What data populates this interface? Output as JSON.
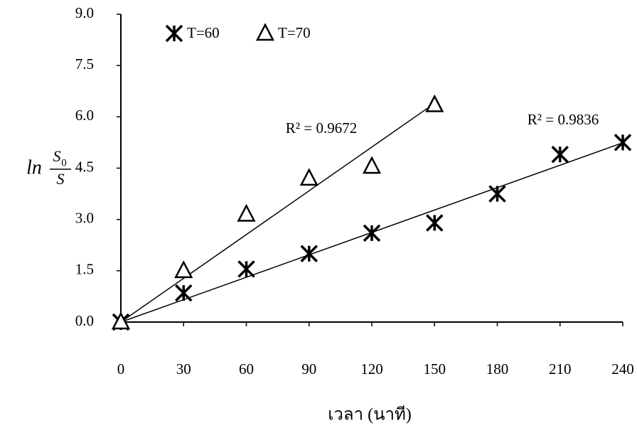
{
  "chart_data": {
    "type": "scatter",
    "x_label": "เวลา (นาที)",
    "y_label": {
      "prefix": "ln",
      "numerator": "S",
      "numerator_sub": "0",
      "denominator": "S"
    },
    "xlim": [
      0,
      240
    ],
    "xticks": [
      0,
      30,
      60,
      90,
      120,
      150,
      180,
      210,
      240
    ],
    "ylim": [
      0,
      9
    ],
    "yticks": [
      {
        "value": 0,
        "label": "0.0"
      },
      1.5,
      {
        "value": 3,
        "label": "3.0"
      },
      4.5,
      {
        "value": 6,
        "label": "6.0"
      },
      7.5,
      {
        "value": 9,
        "label": "9.0"
      }
    ],
    "trendline": true,
    "legend": "top-left",
    "series": [
      {
        "name": "T=60",
        "marker": "asterisk",
        "color": "#000000",
        "x": [
          0,
          30,
          60,
          90,
          120,
          150,
          180,
          210,
          240
        ],
        "values": [
          0,
          0.85,
          1.55,
          2.0,
          2.6,
          2.9,
          3.75,
          4.9,
          5.25
        ]
      },
      {
        "name": "T=70",
        "marker": "triangle",
        "color": "#000000",
        "x": [
          0,
          30,
          60,
          90,
          120,
          150
        ],
        "values": [
          0,
          1.5,
          3.15,
          4.2,
          4.55,
          6.35
        ]
      }
    ],
    "annotations": [
      "R² = 0.9836",
      "R² = 0.9672"
    ]
  }
}
